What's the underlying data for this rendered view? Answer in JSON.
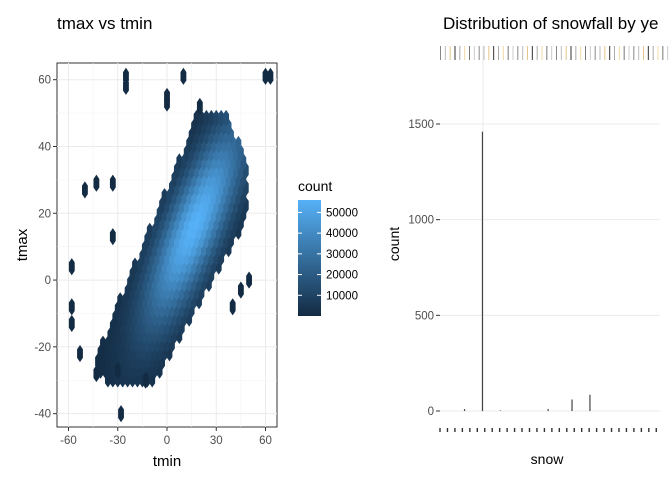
{
  "chart_data": [
    {
      "type": "hexbin",
      "title": "tmax vs tmin",
      "xlabel": "tmin",
      "ylabel": "tmax",
      "xlim": [
        -67,
        67
      ],
      "ylim": [
        -44,
        65
      ],
      "xticks": [
        -60,
        -30,
        0,
        30,
        60
      ],
      "yticks": [
        -40,
        -20,
        0,
        20,
        40,
        60
      ],
      "grid": true,
      "legend": {
        "title": "count",
        "breaks": [
          10000,
          20000,
          30000,
          40000,
          50000
        ],
        "break_labels": [
          "10000",
          "20000",
          "30000",
          "40000",
          "50000"
        ],
        "range": [
          1,
          56000
        ],
        "low_color": "#132b43",
        "high_color": "#56b1f7",
        "placement": "right"
      },
      "outliers": [
        [
          -25,
          61
        ],
        [
          -25,
          58
        ],
        [
          10,
          61
        ],
        [
          60,
          61
        ],
        [
          63,
          61
        ],
        [
          0,
          55
        ],
        [
          0,
          53
        ],
        [
          20,
          52
        ],
        [
          -50,
          27
        ],
        [
          -43,
          29
        ],
        [
          -33,
          29
        ],
        [
          -33,
          13
        ],
        [
          -58,
          4
        ],
        [
          -58,
          -8
        ],
        [
          -58,
          -13
        ],
        [
          -53,
          -22
        ],
        [
          -43,
          -28
        ],
        [
          -28,
          -40
        ],
        [
          50,
          0
        ],
        [
          45,
          -3
        ],
        [
          40,
          -8
        ],
        [
          -30,
          -27
        ],
        [
          -13,
          -30
        ]
      ]
    },
    {
      "type": "bar",
      "title": "Distribution of snowfall by ye",
      "xlabel": "snow",
      "ylabel": "count",
      "ylim": [
        0,
        1500
      ],
      "yticks": [
        0,
        500,
        1000,
        1500
      ],
      "ytick_labels": [
        "0",
        "500",
        "1000",
        "1500"
      ],
      "values": [
        0,
        0,
        10,
        0,
        0,
        1460,
        0,
        0,
        3,
        0,
        0,
        0,
        0,
        0,
        0,
        0,
        10,
        0,
        0,
        0,
        60,
        0,
        0,
        85,
        0,
        0,
        0,
        0,
        0,
        0,
        0,
        0,
        0,
        0,
        0
      ]
    }
  ]
}
